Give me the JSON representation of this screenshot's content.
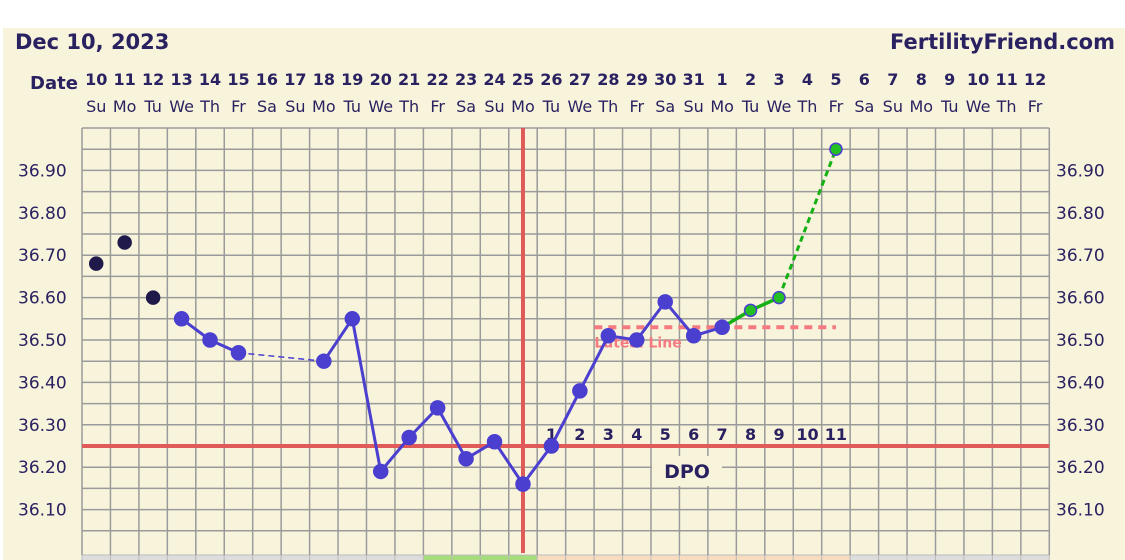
{
  "header": {
    "date": "Dec 10, 2023",
    "site": "FertilityFriend.com",
    "date_label": "Date"
  },
  "chart_data": {
    "type": "line",
    "title": "",
    "dates": [
      "10",
      "11",
      "12",
      "13",
      "14",
      "15",
      "16",
      "17",
      "18",
      "19",
      "20",
      "21",
      "22",
      "23",
      "24",
      "25",
      "26",
      "27",
      "28",
      "29",
      "30",
      "31",
      "1",
      "2",
      "3",
      "4",
      "5",
      "6",
      "7",
      "8",
      "9",
      "10",
      "11",
      "12"
    ],
    "weekdays": [
      "Su",
      "Mo",
      "Tu",
      "We",
      "Th",
      "Fr",
      "Sa",
      "Su",
      "Mo",
      "Tu",
      "We",
      "Th",
      "Fr",
      "Sa",
      "Su",
      "Mo",
      "Tu",
      "We",
      "Th",
      "Fr",
      "Sa",
      "Su",
      "Mo",
      "Tu",
      "We",
      "Th",
      "Fr",
      "Sa",
      "Su",
      "Mo",
      "Tu",
      "We",
      "Th",
      "Fr"
    ],
    "ylim": [
      36.05,
      37.0
    ],
    "yticks": [
      "36.90",
      "36.80",
      "36.70",
      "36.60",
      "36.50",
      "36.40",
      "36.30",
      "36.20",
      "36.10"
    ],
    "grid": true,
    "temps": [
      {
        "date": "10",
        "value": 36.68,
        "kind": "discarded"
      },
      {
        "date": "11",
        "value": 36.73,
        "kind": "discarded"
      },
      {
        "date": "12",
        "value": 36.6,
        "kind": "discarded"
      },
      {
        "date": "13",
        "value": 36.55,
        "kind": "normal"
      },
      {
        "date": "14",
        "value": 36.5,
        "kind": "normal"
      },
      {
        "date": "15",
        "value": 36.47,
        "kind": "normal"
      },
      {
        "date": "18",
        "value": 36.45,
        "kind": "normal",
        "dashed_from_prev": true
      },
      {
        "date": "19",
        "value": 36.55,
        "kind": "normal"
      },
      {
        "date": "20",
        "value": 36.19,
        "kind": "normal"
      },
      {
        "date": "21",
        "value": 36.27,
        "kind": "normal"
      },
      {
        "date": "22",
        "value": 36.34,
        "kind": "normal"
      },
      {
        "date": "23",
        "value": 36.22,
        "kind": "normal"
      },
      {
        "date": "24",
        "value": 36.26,
        "kind": "normal"
      },
      {
        "date": "25",
        "value": 36.16,
        "kind": "normal"
      },
      {
        "date": "26",
        "value": 36.25,
        "kind": "normal"
      },
      {
        "date": "27",
        "value": 36.38,
        "kind": "normal"
      },
      {
        "date": "28",
        "value": 36.51,
        "kind": "normal"
      },
      {
        "date": "29",
        "value": 36.5,
        "kind": "normal"
      },
      {
        "date": "30",
        "value": 36.59,
        "kind": "normal"
      },
      {
        "date": "31",
        "value": 36.51,
        "kind": "normal"
      },
      {
        "date": "Jan 1",
        "value": 36.53,
        "kind": "normal"
      },
      {
        "date": "Jan 2",
        "value": 36.57,
        "kind": "green"
      },
      {
        "date": "Jan 3",
        "value": 36.6,
        "kind": "green"
      },
      {
        "date": "Jan 5",
        "value": 36.95,
        "kind": "green",
        "dashed_from_prev": true
      }
    ],
    "coverline": 36.25,
    "ovulation_date": "25",
    "luteal_line": {
      "label": "Luteal Line",
      "value": 36.53,
      "from": "28",
      "to": "Jan 5"
    },
    "dpo": {
      "label": "DPO",
      "values": [
        "1",
        "2",
        "3",
        "4",
        "5",
        "6",
        "7",
        "8",
        "9",
        "10",
        "11"
      ],
      "start": "26"
    },
    "fertile_days": [
      "22",
      "23",
      "24",
      "25"
    ],
    "luteal_days": [
      "26",
      "27",
      "28",
      "29",
      "30",
      "31",
      "Jan 1",
      "Jan 2",
      "Jan 3",
      "Jan 4",
      "Jan 5"
    ],
    "colors": {
      "temp_line": "#4b3fcf",
      "discarded": "#1f1a4a",
      "green": "#14b014",
      "coverline": "#e05a5a",
      "luteal": "#f47a80",
      "fertile": "#a6dc7c",
      "luteal_strip": "#f8dcc0",
      "text": "#2a2160"
    }
  }
}
